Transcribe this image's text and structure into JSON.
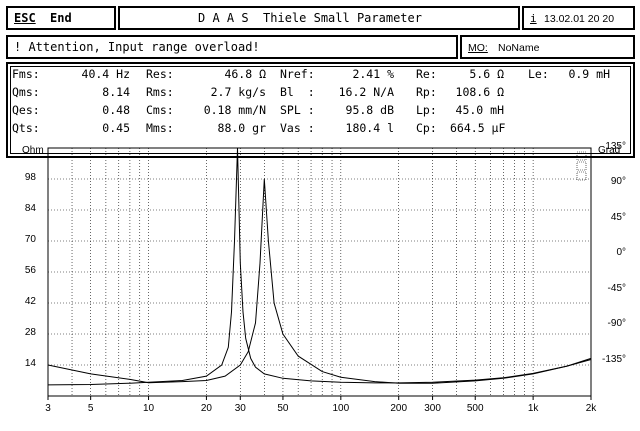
{
  "topbar": {
    "esc_key": "ESC",
    "esc_label": "End",
    "title": "D A A S  Thiele Small Parameter",
    "info_key": "i",
    "datetime": "13.02.01 20 20"
  },
  "message": {
    "text": "! Attention, Input range overload!",
    "mo_key": "MO:",
    "mo_value": "NoName"
  },
  "params": [
    [
      {
        "label": "Fms:",
        "value": "40.4 Hz"
      },
      {
        "label": "Res:",
        "value": "46.8 Ω"
      },
      {
        "label": "Nref:",
        "value": "2.41 %"
      },
      {
        "label": "Re:",
        "value": "5.6 Ω"
      },
      {
        "label": "Le:",
        "value": "0.9 mH"
      }
    ],
    [
      {
        "label": "Qms:",
        "value": "8.14"
      },
      {
        "label": "Rms:",
        "value": "2.7 kg/s"
      },
      {
        "label": "Bl  :",
        "value": "16.2 N/A"
      },
      {
        "label": "Rp:",
        "value": "108.6 Ω"
      }
    ],
    [
      {
        "label": "Qes:",
        "value": "0.48"
      },
      {
        "label": "Cms:",
        "value": "0.18 mm/N"
      },
      {
        "label": "SPL :",
        "value": "95.8 dB"
      },
      {
        "label": "Lp:",
        "value": "45.0 mH"
      }
    ],
    [
      {
        "label": "Qts:",
        "value": "0.45"
      },
      {
        "label": "Mms:",
        "value": "88.0 gr"
      },
      {
        "label": "Vas :",
        "value": "180.4 l"
      },
      {
        "label": "Cp:",
        "value": "664.5 µF"
      }
    ]
  ],
  "chart_data": {
    "type": "line",
    "left_axis_title": "Ohm",
    "right_axis_title": "Grad",
    "left_ticks": [
      "98",
      "84",
      "70",
      "56",
      "42",
      "28",
      "14"
    ],
    "left_tick_values": [
      98,
      84,
      70,
      56,
      42,
      28,
      14
    ],
    "right_ticks": [
      "135°",
      "90°",
      "45°",
      "0°",
      "-45°",
      "-90°",
      "-135°"
    ],
    "right_tick_values": [
      135,
      90,
      45,
      0,
      -45,
      -90,
      -135
    ],
    "x_ticks": [
      "3",
      "5",
      "10",
      "20",
      "30",
      "50",
      "100",
      "200",
      "300",
      "500",
      "1k",
      "2k"
    ],
    "x_tick_values": [
      3,
      5,
      10,
      20,
      30,
      50,
      100,
      200,
      300,
      500,
      1000,
      2000
    ],
    "xscale": "log",
    "xlim": [
      3,
      2000
    ],
    "ylim": [
      0,
      112
    ],
    "grid": true,
    "series": [
      {
        "curve": "impedance",
        "color": "#000000",
        "x": [
          3,
          5,
          8,
          10,
          15,
          20,
          24,
          26,
          27,
          28,
          29,
          30,
          31,
          32,
          34,
          36,
          40,
          50,
          70,
          100,
          150,
          200,
          300,
          500,
          700,
          1000,
          1500,
          2000
        ],
        "y": [
          5,
          5.2,
          5.8,
          6.2,
          7,
          9,
          14,
          22,
          38,
          70,
          112,
          60,
          38,
          26,
          17,
          13,
          10,
          8,
          6.8,
          6.2,
          5.9,
          5.9,
          6.2,
          7.2,
          8.2,
          10.2,
          13.5,
          16.5
        ]
      },
      {
        "curve": "impedance",
        "color": "#000000",
        "x": [
          3,
          5,
          8,
          10,
          15,
          20,
          25,
          30,
          33,
          36,
          38,
          40,
          42,
          45,
          50,
          60,
          80,
          100,
          150,
          200,
          300,
          500,
          700,
          1000,
          1500,
          2000
        ],
        "y": [
          14,
          10,
          7.5,
          6,
          6.5,
          7,
          9,
          14,
          20,
          33,
          60,
          98,
          70,
          42,
          28,
          18,
          11,
          8.5,
          6.5,
          5.8,
          5.8,
          6.8,
          8,
          10,
          13.5,
          17
        ]
      }
    ]
  }
}
